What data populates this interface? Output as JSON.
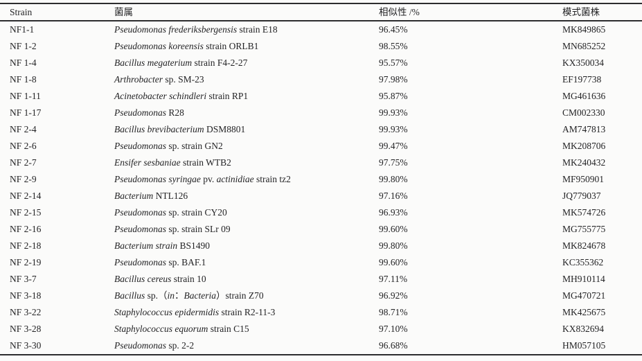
{
  "table": {
    "headers": {
      "strain": "Strain",
      "genus": "菌属",
      "similarity": "相似性 /%",
      "accession": "模式菌株"
    },
    "rows": [
      {
        "strain": "NF1-1",
        "genus": [
          {
            "text": "Pseudomonas frederiksbergensis",
            "italic": true
          },
          {
            "text": " strain E18",
            "italic": false
          }
        ],
        "similarity": "96.45%",
        "accession": "MK849865"
      },
      {
        "strain": "NF 1-2",
        "genus": [
          {
            "text": "Pseudomonas koreensis",
            "italic": true
          },
          {
            "text": " strain ORLB1",
            "italic": false
          }
        ],
        "similarity": "98.55%",
        "accession": "MN685252"
      },
      {
        "strain": "NF 1-4",
        "genus": [
          {
            "text": "Bacillus megaterium",
            "italic": true
          },
          {
            "text": " strain F4-2-27",
            "italic": false
          }
        ],
        "similarity": "95.57%",
        "accession": "KX350034"
      },
      {
        "strain": "NF 1-8",
        "genus": [
          {
            "text": "Arthrobacter",
            "italic": true
          },
          {
            "text": " sp. SM-23",
            "italic": false
          }
        ],
        "similarity": "97.98%",
        "accession": "EF197738"
      },
      {
        "strain": "NF 1-11",
        "genus": [
          {
            "text": "Acinetobacter schindleri",
            "italic": true
          },
          {
            "text": " strain RP1",
            "italic": false
          }
        ],
        "similarity": "95.87%",
        "accession": "MG461636"
      },
      {
        "strain": "NF 1-17",
        "genus": [
          {
            "text": "Pseudomonas",
            "italic": true
          },
          {
            "text": " R28",
            "italic": false
          }
        ],
        "similarity": "99.93%",
        "accession": "CM002330"
      },
      {
        "strain": "NF 2-4",
        "genus": [
          {
            "text": "Bacillus brevibacterium",
            "italic": true
          },
          {
            "text": " DSM8801",
            "italic": false
          }
        ],
        "similarity": "99.93%",
        "accession": "AM747813"
      },
      {
        "strain": "NF 2-6",
        "genus": [
          {
            "text": "Pseudomonas",
            "italic": true
          },
          {
            "text": " sp. strain GN2",
            "italic": false
          }
        ],
        "similarity": "99.47%",
        "accession": "MK208706"
      },
      {
        "strain": "NF 2-7",
        "genus": [
          {
            "text": "Ensifer sesbaniae",
            "italic": true
          },
          {
            "text": " strain WTB2",
            "italic": false
          }
        ],
        "similarity": "97.75%",
        "accession": "MK240432"
      },
      {
        "strain": "NF 2-9",
        "genus": [
          {
            "text": "Pseudomonas syringae",
            "italic": true
          },
          {
            "text": " pv. ",
            "italic": false
          },
          {
            "text": "actinidiae",
            "italic": true
          },
          {
            "text": " strain tz2",
            "italic": false
          }
        ],
        "similarity": "99.80%",
        "accession": "MF950901"
      },
      {
        "strain": "NF 2-14",
        "genus": [
          {
            "text": "Bacterium",
            "italic": true
          },
          {
            "text": " NTL126",
            "italic": false
          }
        ],
        "similarity": "97.16%",
        "accession": "JQ779037"
      },
      {
        "strain": "NF 2-15",
        "genus": [
          {
            "text": "Pseudomonas",
            "italic": true
          },
          {
            "text": " sp. strain CY20",
            "italic": false
          }
        ],
        "similarity": "96.93%",
        "accession": "MK574726"
      },
      {
        "strain": "NF 2-16",
        "genus": [
          {
            "text": "Pseudomonas",
            "italic": true
          },
          {
            "text": " sp. strain SLr 09",
            "italic": false
          }
        ],
        "similarity": "99.60%",
        "accession": "MG755775"
      },
      {
        "strain": "NF 2-18",
        "genus": [
          {
            "text": "Bacterium strain",
            "italic": true
          },
          {
            "text": " BS1490",
            "italic": false
          }
        ],
        "similarity": "99.80%",
        "accession": "MK824678"
      },
      {
        "strain": "NF 2-19",
        "genus": [
          {
            "text": "Pseudomonas",
            "italic": true
          },
          {
            "text": " sp. BAF.1",
            "italic": false
          }
        ],
        "similarity": "99.60%",
        "accession": "KC355362"
      },
      {
        "strain": "NF 3-7",
        "genus": [
          {
            "text": "Bacillus cereus",
            "italic": true
          },
          {
            "text": " strain 10",
            "italic": false
          }
        ],
        "similarity": "97.11%",
        "accession": "MH910114"
      },
      {
        "strain": "NF 3-18",
        "genus": [
          {
            "text": "Bacillus",
            "italic": true
          },
          {
            "text": " sp.（",
            "italic": false
          },
          {
            "text": "in",
            "italic": true
          },
          {
            "text": "：",
            "italic": false
          },
          {
            "text": "Bacteria",
            "italic": true
          },
          {
            "text": "）strain Z70",
            "italic": false
          }
        ],
        "similarity": "96.92%",
        "accession": "MG470721"
      },
      {
        "strain": "NF 3-22",
        "genus": [
          {
            "text": "Staphylococcus epidermidis",
            "italic": true
          },
          {
            "text": " strain R2-11-3",
            "italic": false
          }
        ],
        "similarity": "98.71%",
        "accession": "MK425675"
      },
      {
        "strain": "NF 3-28",
        "genus": [
          {
            "text": "Staphylococcus equorum",
            "italic": true
          },
          {
            "text": " strain C15",
            "italic": false
          }
        ],
        "similarity": "97.10%",
        "accession": "KX832694"
      },
      {
        "strain": "NF 3-30",
        "genus": [
          {
            "text": "Pseudomonas",
            "italic": true
          },
          {
            "text": " sp. 2-2",
            "italic": false
          }
        ],
        "similarity": "96.68%",
        "accession": "HM057105"
      }
    ]
  }
}
